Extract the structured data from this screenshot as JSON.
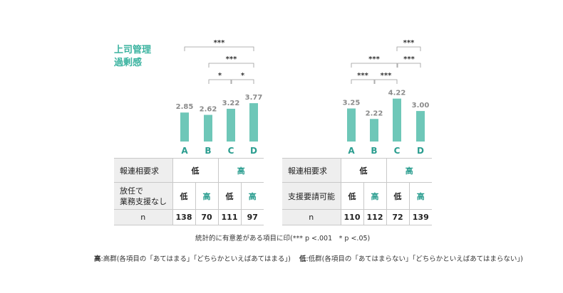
{
  "side_title_1": "上司管理",
  "side_title_2": "過剰感",
  "chart_data": [
    {
      "type": "bar",
      "categories": [
        "A",
        "B",
        "C",
        "D"
      ],
      "values": [
        2.85,
        2.62,
        3.22,
        3.77
      ],
      "value_labels": [
        "2.85",
        "2.62",
        "3.22",
        "3.77"
      ],
      "significance": [
        {
          "from": "A",
          "to": "D",
          "label": "***"
        },
        {
          "from": "B",
          "to": "D",
          "label": "***"
        },
        {
          "from": "B",
          "to": "C",
          "label": "*"
        },
        {
          "from": "C",
          "to": "D",
          "label": "*"
        }
      ],
      "color": "#6ec7b8"
    },
    {
      "type": "bar",
      "categories": [
        "A",
        "B",
        "C",
        "D"
      ],
      "values": [
        3.25,
        2.22,
        4.22,
        3.0
      ],
      "value_labels": [
        "3.25",
        "2.22",
        "4.22",
        "3.00"
      ],
      "significance": [
        {
          "from": "C",
          "to": "D",
          "label": "***"
        },
        {
          "from": "A",
          "to": "C",
          "label": "***"
        },
        {
          "from": "C",
          "to": "D",
          "label": "***"
        },
        {
          "from": "A",
          "to": "B",
          "label": "***"
        },
        {
          "from": "B",
          "to": "C",
          "label": "***"
        }
      ],
      "color": "#6ec7b8"
    }
  ],
  "table_left": {
    "row1_label": "報連相要求",
    "row1_low": "低",
    "row1_high": "高",
    "row2_label_1": "放任で",
    "row2_label_2": "業務支援なし",
    "row2_cells": [
      "低",
      "高",
      "低",
      "高"
    ],
    "row3_label": "n",
    "row3_cells": [
      "138",
      "70",
      "111",
      "97"
    ]
  },
  "table_right": {
    "row1_label": "報連相要求",
    "row1_low": "低",
    "row1_high": "高",
    "row2_label": "支援要請可能",
    "row2_cells": [
      "低",
      "高",
      "低",
      "高"
    ],
    "row3_label": "n",
    "row3_cells": [
      "110",
      "112",
      "72",
      "139"
    ]
  },
  "footnote": "統計的に有意差がある項目に印(*** p <.001　* p <.05)",
  "legend_high_key": "高",
  "legend_high_text": ":高群(各項目の「あてはまる」「どちらかといえばあてはまる」)",
  "legend_low_key": "低",
  "legend_low_text": ":低群(各項目の「あてはまらない」「どちらかといえばあてはまらない」)"
}
